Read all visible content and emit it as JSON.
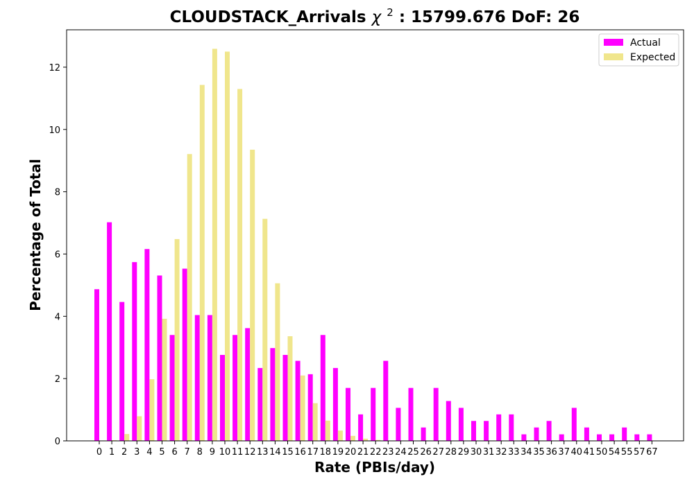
{
  "chart_data": {
    "type": "bar",
    "title": "CLOUDSTACK_Arrivals",
    "title_chi": "χ",
    "title_sup": "2",
    "title_rest": ": 15799.676 DoF: 26",
    "xlabel": "Rate (PBIs/day)",
    "ylabel": "Percentage of Total",
    "ylim": [
      0,
      13.2
    ],
    "yticks": [
      0,
      2,
      4,
      6,
      8,
      10,
      12
    ],
    "categories": [
      "0",
      "1",
      "2",
      "3",
      "4",
      "5",
      "6",
      "7",
      "8",
      "9",
      "10",
      "11",
      "12",
      "13",
      "14",
      "15",
      "16",
      "17",
      "18",
      "19",
      "20",
      "21",
      "22",
      "23",
      "24",
      "25",
      "26",
      "27",
      "28",
      "29",
      "30",
      "31",
      "32",
      "33",
      "34",
      "35",
      "36",
      "37",
      "40",
      "41",
      "50",
      "54",
      "55",
      "57",
      "67"
    ],
    "series": [
      {
        "name": "Actual",
        "color": "#ff00ff",
        "values": [
          4.87,
          7.02,
          4.46,
          5.74,
          6.16,
          5.31,
          3.4,
          5.53,
          4.04,
          4.04,
          2.76,
          3.4,
          3.62,
          2.34,
          2.98,
          2.76,
          2.57,
          2.14,
          3.4,
          2.34,
          1.7,
          0.85,
          1.7,
          2.57,
          1.06,
          1.7,
          0.43,
          1.7,
          1.28,
          1.06,
          0.64,
          0.64,
          0.85,
          0.85,
          0.21,
          0.43,
          0.64,
          0.21,
          1.06,
          0.43,
          0.21,
          0.21,
          0.43,
          0.21,
          0.21
        ]
      },
      {
        "name": "Expected",
        "color": "#f0e68c",
        "values": [
          0.0,
          0.02,
          0.22,
          0.79,
          1.98,
          3.92,
          6.48,
          9.21,
          11.43,
          12.59,
          12.5,
          11.3,
          9.35,
          7.13,
          5.06,
          3.36,
          2.1,
          1.21,
          0.65,
          0.33,
          0.16,
          0.07,
          0.03,
          0.01,
          0.0,
          0.0,
          0.0,
          0.0,
          0.0,
          0.0,
          0.0,
          0.0,
          0.0,
          0.0,
          0.0,
          0.0,
          0.0,
          0.0,
          0.0,
          0.0,
          0.0,
          0.0,
          0.0,
          0.0,
          0.0
        ]
      }
    ],
    "legend_position": "top-right",
    "grid": false
  }
}
